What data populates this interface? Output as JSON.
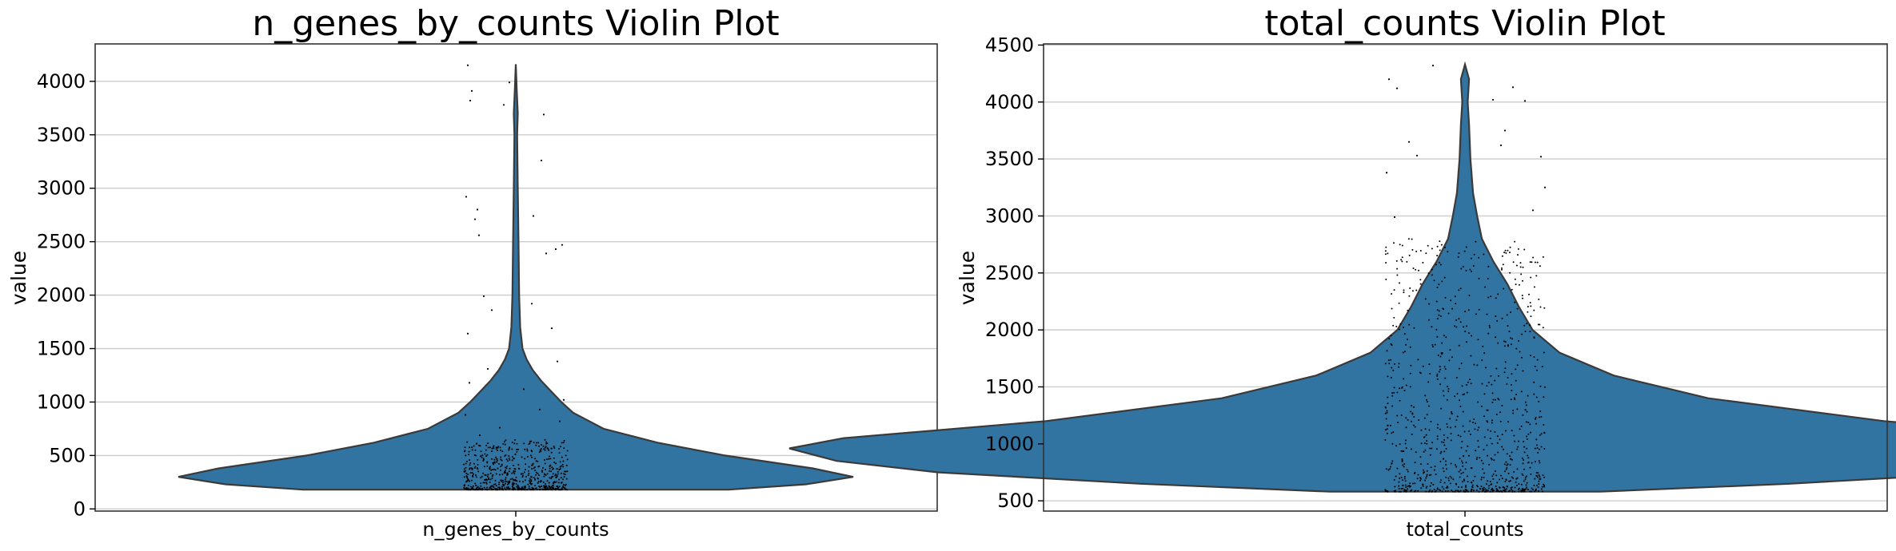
{
  "chart_data": [
    {
      "type": "violin",
      "title": "n_genes_by_counts Violin Plot",
      "xlabel": "",
      "ylabel": "value",
      "category": "n_genes_by_counts",
      "ylim": [
        -20,
        4350
      ],
      "yticks": [
        0,
        500,
        1000,
        1500,
        2000,
        2500,
        3000,
        3500,
        4000
      ],
      "grid": true,
      "color": "#3274a1",
      "data_range": [
        180,
        4160
      ],
      "density_profile": [
        [
          180,
          0.63
        ],
        [
          230,
          0.86
        ],
        [
          300,
          1.0
        ],
        [
          380,
          0.88
        ],
        [
          500,
          0.62
        ],
        [
          620,
          0.42
        ],
        [
          750,
          0.26
        ],
        [
          900,
          0.17
        ],
        [
          1000,
          0.135
        ],
        [
          1100,
          0.105
        ],
        [
          1200,
          0.075
        ],
        [
          1300,
          0.05
        ],
        [
          1400,
          0.032
        ],
        [
          1500,
          0.02
        ],
        [
          1700,
          0.013
        ],
        [
          2000,
          0.01
        ],
        [
          2500,
          0.008
        ],
        [
          3000,
          0.006
        ],
        [
          3500,
          0.004
        ],
        [
          3700,
          0.006
        ],
        [
          3900,
          0.003
        ],
        [
          4160,
          0.0
        ]
      ],
      "points": [
        [
          -0.06,
          4150
        ],
        [
          -0.057,
          3820
        ],
        [
          -0.055,
          3910
        ],
        [
          -0.008,
          3990
        ],
        [
          -0.015,
          3780
        ],
        [
          0.035,
          3690
        ],
        [
          0.032,
          3260
        ],
        [
          -0.062,
          2920
        ],
        [
          -0.051,
          2710
        ],
        [
          -0.048,
          2800
        ],
        [
          -0.046,
          2560
        ],
        [
          0.022,
          2740
        ],
        [
          0.05,
          2430
        ],
        [
          0.058,
          2470
        ],
        [
          0.038,
          2390
        ],
        [
          -0.06,
          1640
        ],
        [
          -0.04,
          1990
        ],
        [
          0.02,
          1920
        ],
        [
          0.045,
          1690
        ],
        [
          -0.03,
          1860
        ],
        [
          -0.058,
          1180
        ],
        [
          -0.035,
          1310
        ],
        [
          0.01,
          1120
        ],
        [
          0.052,
          1380
        ],
        [
          0.06,
          1020
        ],
        [
          -0.063,
          880
        ],
        [
          -0.02,
          760
        ],
        [
          0.03,
          930
        ],
        [
          0.055,
          820
        ],
        [
          -0.045,
          690
        ]
      ],
      "dense_points": {
        "count": 650,
        "x_spread": 0.065,
        "y_range": [
          180,
          650
        ],
        "weight": "low-heavy"
      }
    },
    {
      "type": "violin",
      "title": "total_counts Violin Plot",
      "xlabel": "",
      "ylabel": "value",
      "category": "total_counts",
      "ylim": [
        410,
        4510
      ],
      "yticks": [
        500,
        1000,
        1500,
        2000,
        2500,
        3000,
        3500,
        4000,
        4500
      ],
      "grid": true,
      "color": "#3274a1",
      "data_range": [
        580,
        4330
      ],
      "density_profile": [
        [
          580,
          0.2
        ],
        [
          650,
          0.48
        ],
        [
          750,
          0.78
        ],
        [
          850,
          0.93
        ],
        [
          960,
          1.0
        ],
        [
          1050,
          0.92
        ],
        [
          1200,
          0.62
        ],
        [
          1400,
          0.36
        ],
        [
          1600,
          0.22
        ],
        [
          1800,
          0.14
        ],
        [
          2000,
          0.1
        ],
        [
          2200,
          0.08
        ],
        [
          2400,
          0.063
        ],
        [
          2600,
          0.042
        ],
        [
          2800,
          0.025
        ],
        [
          3000,
          0.018
        ],
        [
          3200,
          0.012
        ],
        [
          3500,
          0.008
        ],
        [
          3800,
          0.006
        ],
        [
          4000,
          0.004
        ],
        [
          4200,
          0.006
        ],
        [
          4330,
          0.0
        ]
      ],
      "points": [
        [
          -0.095,
          4200
        ],
        [
          -0.085,
          4120
        ],
        [
          0.06,
          4130
        ],
        [
          0.075,
          4010
        ],
        [
          -0.04,
          4320
        ],
        [
          0.035,
          4020
        ],
        [
          -0.07,
          3650
        ],
        [
          0.05,
          3750
        ],
        [
          0.095,
          3520
        ],
        [
          -0.098,
          3380
        ],
        [
          0.1,
          3250
        ],
        [
          -0.06,
          3530
        ],
        [
          0.085,
          3050
        ],
        [
          -0.088,
          2990
        ],
        [
          0.045,
          3620
        ]
      ],
      "dense_points": {
        "count": 950,
        "x_spread": 0.1,
        "y_range": [
          580,
          2800
        ],
        "weight": "low-heavy"
      }
    }
  ]
}
